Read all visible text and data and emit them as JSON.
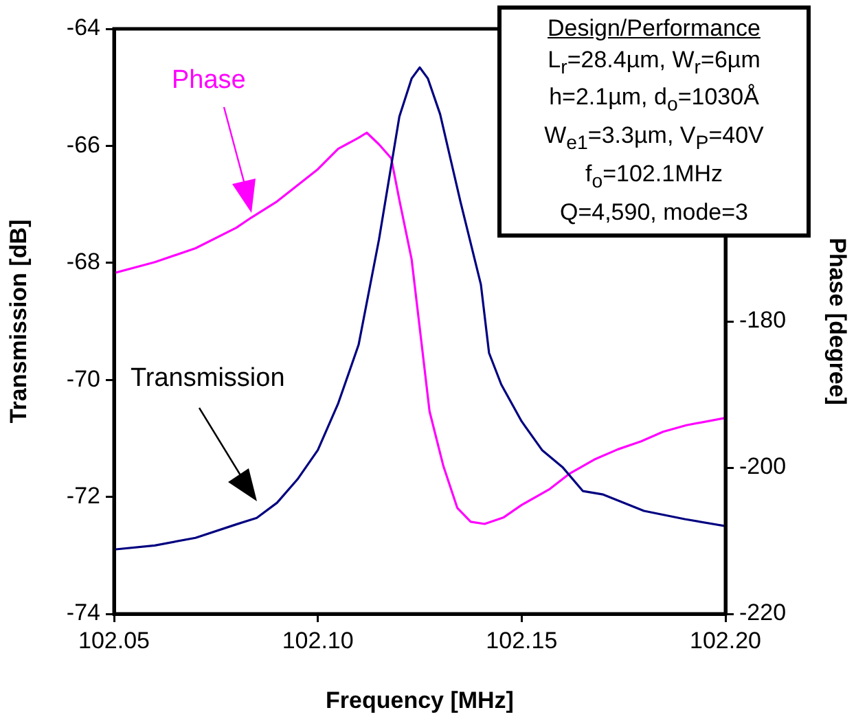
{
  "chart_data": {
    "type": "line",
    "xlabel": "Frequency [MHz]",
    "ylabel": "Transmission [dB]",
    "y2label": "Phase [degree]",
    "xlim": [
      102.05,
      102.2
    ],
    "xticks": [
      102.05,
      {
        "value": 102.1,
        "label": "102.10"
      },
      102.15,
      {
        "value": 102.2,
        "label": "102.20"
      }
    ],
    "ylim": [
      -74,
      -64
    ],
    "yticks": [
      -74,
      -72,
      -70,
      -68,
      -66,
      -64
    ],
    "y2lim": [
      -220,
      -140
    ],
    "y2ticks": [
      -220,
      -200,
      -180
    ],
    "grid": false,
    "legend": false,
    "marker": "none",
    "line_style": "solid",
    "series": [
      {
        "color": "#000080",
        "axis": "y",
        "x": [
          102.05,
          102.06,
          102.07,
          102.08,
          102.085,
          102.09,
          102.095,
          102.1,
          102.105,
          102.11,
          102.115,
          102.12,
          102.123,
          102.125,
          102.127,
          102.13,
          102.135,
          102.14,
          102.142,
          102.145,
          102.15,
          102.155,
          102.16,
          102.165,
          102.17,
          102.18,
          102.19,
          102.2
        ],
        "values": [
          -72.9,
          -72.83,
          -72.7,
          -72.47,
          -72.36,
          -72.1,
          -71.7,
          -71.2,
          -70.4,
          -69.4,
          -67.6,
          -65.5,
          -64.85,
          -64.66,
          -64.85,
          -65.46,
          -66.96,
          -68.37,
          -69.54,
          -70.08,
          -70.71,
          -71.2,
          -71.49,
          -71.9,
          -71.96,
          -72.24,
          -72.38,
          -72.5
        ]
      },
      {
        "color": "#ff00ff",
        "axis": "y2",
        "x": [
          102.05,
          102.06,
          102.07,
          102.08,
          102.0837,
          102.09,
          102.1,
          102.105,
          102.11,
          102.112,
          102.115,
          102.118,
          102.12,
          102.123,
          102.1254,
          102.1274,
          102.1308,
          102.1342,
          102.1375,
          102.1409,
          102.1456,
          102.15,
          102.1567,
          102.1618,
          102.1678,
          102.1736,
          102.1793,
          102.1847,
          102.1904,
          102.2
        ],
        "values": [
          -173.4,
          -171.9,
          -170,
          -167.2,
          -165.8,
          -163.6,
          -159.2,
          -156.4,
          -154.9,
          -154.2,
          -155.8,
          -157.7,
          -163.4,
          -171.5,
          -182.8,
          -192.3,
          -199.8,
          -205.5,
          -207.4,
          -207.7,
          -206.8,
          -205.1,
          -203,
          -200.8,
          -198.9,
          -197.5,
          -196.4,
          -195.1,
          -194.2,
          -193.2
        ]
      }
    ],
    "annotations": [
      "Transmission",
      "Phase",
      "Design/Performance",
      "L$_{r}$=28.4µm, W$_{r}$=6µm",
      "h=2.1µm, d$_{o}$=1030Å",
      "W$_{e1}$=3.3µm, V$_{P}$=40V",
      "f$_{o}$=102.1MHz",
      "Q=4,590, mode=3"
    ]
  }
}
